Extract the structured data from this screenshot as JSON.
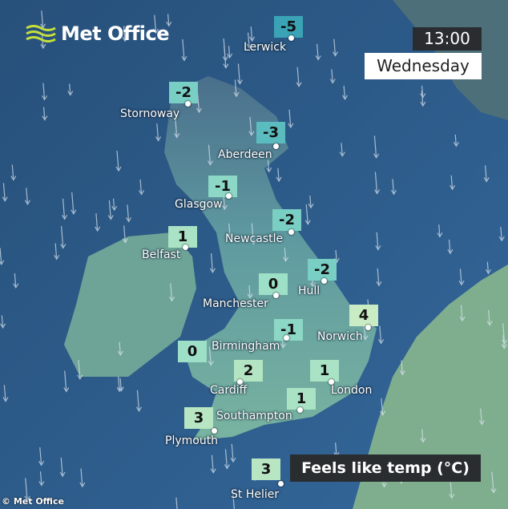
{
  "logo": {
    "text": "Met Office",
    "color": "#c6e03a"
  },
  "header": {
    "time": "13:00",
    "day": "Wednesday"
  },
  "legend": {
    "title": "Feels like temp (°C)"
  },
  "copyright": "© Met Office",
  "scale_colors": {
    "-5": "#3aa4b6",
    "-3": "#5bbcc0",
    "-2": "#79cfc4",
    "-1": "#8cd7c6",
    "0": "#9edfc8",
    "1": "#a9e2c5",
    "2": "#b4e5c3",
    "3": "#b8e6c2",
    "4": "#c9ecc4"
  },
  "cities": [
    {
      "name": "Lerwick",
      "value": "-5"
    },
    {
      "name": "Stornoway",
      "value": "-2"
    },
    {
      "name": "Aberdeen",
      "value": "-3"
    },
    {
      "name": "Glasgow",
      "value": "-1"
    },
    {
      "name": "Belfast",
      "value": "1"
    },
    {
      "name": "Newcastle",
      "value": "-2"
    },
    {
      "name": "Hull",
      "value": "-2"
    },
    {
      "name": "Manchester",
      "value": "0"
    },
    {
      "name": "Norwich",
      "value": "4"
    },
    {
      "name": "Birmingham",
      "value": "-1"
    },
    {
      "name": "",
      "value": "0"
    },
    {
      "name": "Cardiff",
      "value": "2"
    },
    {
      "name": "London",
      "value": "1"
    },
    {
      "name": "Southampton",
      "value": "1"
    },
    {
      "name": "Plymouth",
      "value": "3"
    },
    {
      "name": "St Helier",
      "value": "3"
    }
  ]
}
